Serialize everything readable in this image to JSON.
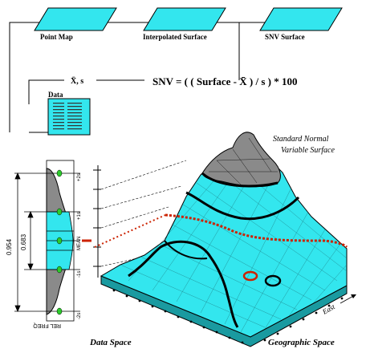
{
  "boxes": {
    "point_map": "Point Map",
    "interpolated_surface": "Interpolated Surface",
    "snv_surface": "SNV Surface",
    "data": "Data"
  },
  "stats_label": "X̄, s",
  "formula": "SNV = ( ( Surface - X̄ ) / s ) * 100",
  "surface_title_line1": "Standard Normal",
  "surface_title_line2": "Variable Surface",
  "histogram": {
    "span_outer": "0.954",
    "span_inner": "0.683",
    "axis_label": "REL FREQ",
    "ticks": [
      "+2s",
      "+1s",
      "MEAN",
      "-1s",
      "-2s"
    ]
  },
  "data_space_label": "Data Space",
  "geo_space_label": "Geographic Space",
  "east_label": "East",
  "colors": {
    "cyan": "#33e6ee",
    "gray": "#8a8a8a",
    "red": "#cc2200",
    "black": "#000000"
  }
}
